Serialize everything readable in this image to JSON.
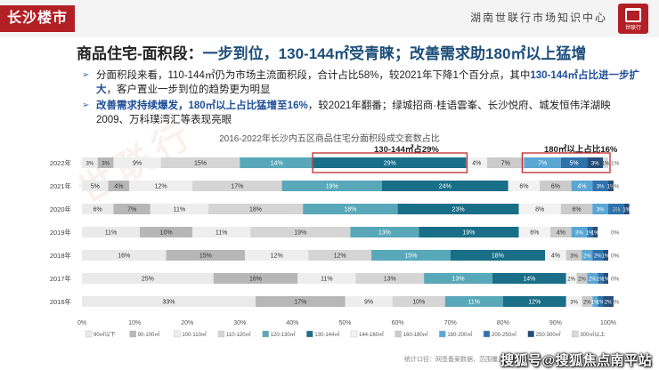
{
  "header": {
    "city_tab": "长沙楼市",
    "org_name": "湖南世联行市场知识中心",
    "logo_text": "世联行"
  },
  "headline": {
    "lead": "商品住宅-面积段：",
    "highlight": "一步到位，130-144㎡受青睐；改善需求助180㎡以上猛增"
  },
  "bullets": [
    {
      "p1": "分面积段来看，110-144㎡仍为市场主流面积段，合计占比58%，较2021年下降1个百分点，其中",
      "h1": "130-144㎡占比进一步扩大",
      "p2": "，客户置业一步到位的趋势更为明显"
    },
    {
      "p1": "",
      "h1": "改善需求持续爆发，180㎡以上占比猛增至16%",
      "p2": "，较2021年翻番；绿城招商·桂语雲峯、长沙悦府、城发恒伟洋湖映2009、万科璞湾汇等表现亮眼"
    }
  ],
  "chart_data": {
    "type": "bar",
    "orientation": "horizontal",
    "stacked": true,
    "title": "2016-2022年长沙内五区商品住宅分面积段成交套数占比",
    "categories": [
      "2022年",
      "2021年",
      "2020年",
      "2019年",
      "2018年",
      "2017年",
      "2016年"
    ],
    "xlim": [
      0,
      100
    ],
    "x_ticks": [
      "0%",
      "10%",
      "20%",
      "30%",
      "40%",
      "50%",
      "60%",
      "70%",
      "80%",
      "90%",
      "100%"
    ],
    "legend_position": "bottom",
    "series": [
      {
        "name": "90㎡以下",
        "color": "#eaeaea",
        "text_color": "#333",
        "values": [
          3,
          5,
          6,
          11,
          16,
          25,
          33
        ]
      },
      {
        "name": "90-100㎡",
        "color": "#b7b7b7",
        "text_color": "#333",
        "values": [
          3,
          4,
          7,
          10,
          15,
          16,
          17
        ]
      },
      {
        "name": "100-110㎡",
        "color": "#eeeeee",
        "text_color": "#333",
        "values": [
          9,
          12,
          11,
          11,
          12,
          11,
          9
        ]
      },
      {
        "name": "110-120㎡",
        "color": "#d5d5d5",
        "text_color": "#333",
        "values": [
          15,
          17,
          18,
          19,
          12,
          13,
          10
        ]
      },
      {
        "name": "120-130㎡",
        "color": "#58a8ba",
        "text_color": "#fff",
        "values": [
          14,
          19,
          18,
          13,
          15,
          13,
          11
        ]
      },
      {
        "name": "130-144㎡",
        "color": "#1a6f88",
        "text_color": "#fff",
        "values": [
          29,
          24,
          23,
          19,
          18,
          14,
          12
        ]
      },
      {
        "name": "144-160㎡",
        "color": "#f2f2f2",
        "text_color": "#333",
        "values": [
          4,
          6,
          8,
          6,
          4,
          2,
          3
        ]
      },
      {
        "name": "160-180㎡",
        "color": "#cbcbcb",
        "text_color": "#333",
        "values": [
          7,
          6,
          6,
          4,
          3,
          2,
          2
        ]
      },
      {
        "name": "180-200㎡",
        "color": "#5aa7d3",
        "text_color": "#fff",
        "values": [
          7,
          4,
          3,
          3,
          2,
          2,
          1
        ]
      },
      {
        "name": "200-250㎡",
        "color": "#2f73ad",
        "text_color": "#fff",
        "values": [
          5,
          3,
          3,
          1,
          2,
          1,
          1
        ]
      },
      {
        "name": "250-300㎡",
        "color": "#254e7a",
        "text_color": "#fff",
        "values": [
          3,
          1,
          1,
          1,
          1,
          1,
          2
        ]
      },
      {
        "name": "300㎡以上",
        "color": "#d8d8d8",
        "text_color": "#333",
        "values": [
          1,
          0,
          0,
          0,
          0,
          0,
          0
        ]
      }
    ],
    "annotations": [
      {
        "text": "130-144㎡占29%"
      },
      {
        "text": "180㎡以上占比16%"
      }
    ],
    "source_note": "统计口径：网签备案数据，范围覆盖长沙内五区"
  },
  "watermark": "搜狐号@搜狐焦点南平站"
}
